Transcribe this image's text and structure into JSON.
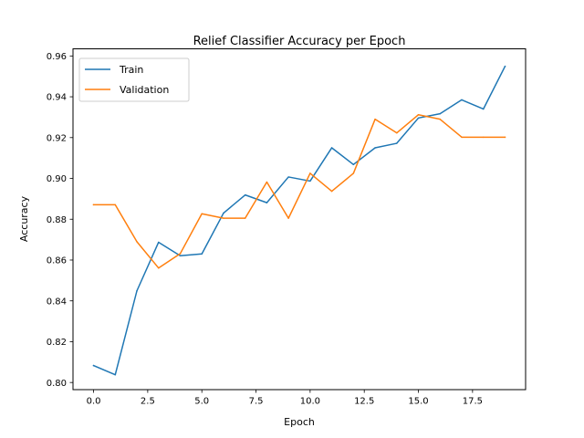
{
  "chart_data": {
    "type": "line",
    "title": "Relief Classifier Accuracy per Epoch",
    "xlabel": "Epoch",
    "ylabel": "Accuracy",
    "xlim": [
      -0.95,
      19.95
    ],
    "ylim": [
      0.7965,
      0.9635
    ],
    "xticks": [
      0.0,
      2.5,
      5.0,
      7.5,
      10.0,
      12.5,
      15.0,
      17.5
    ],
    "xtick_labels": [
      "0.0",
      "2.5",
      "5.0",
      "7.5",
      "10.0",
      "12.5",
      "15.0",
      "17.5"
    ],
    "yticks": [
      0.8,
      0.82,
      0.84,
      0.86,
      0.88,
      0.9,
      0.92,
      0.94,
      0.96
    ],
    "ytick_labels": [
      "0.80",
      "0.82",
      "0.84",
      "0.86",
      "0.88",
      "0.90",
      "0.92",
      "0.94",
      "0.96"
    ],
    "grid": false,
    "legend_position": "top-left",
    "x": [
      0,
      1,
      2,
      3,
      4,
      5,
      6,
      7,
      8,
      9,
      10,
      11,
      12,
      13,
      14,
      15,
      16,
      17,
      18,
      19
    ],
    "series": [
      {
        "name": "Train",
        "color": "#1f77b4",
        "values": [
          0.8083,
          0.8038,
          0.8449,
          0.8687,
          0.8621,
          0.863,
          0.883,
          0.8919,
          0.8881,
          0.9007,
          0.8987,
          0.915,
          0.9068,
          0.915,
          0.9172,
          0.9296,
          0.9317,
          0.9385,
          0.934,
          0.9549
        ]
      },
      {
        "name": "Validation",
        "color": "#ff7f0e",
        "values": [
          0.8871,
          0.8871,
          0.869,
          0.8561,
          0.8631,
          0.8827,
          0.8805,
          0.8805,
          0.8982,
          0.8805,
          0.9025,
          0.8937,
          0.9025,
          0.929,
          0.9223,
          0.9312,
          0.929,
          0.9202,
          0.9202,
          0.9202
        ]
      }
    ]
  }
}
